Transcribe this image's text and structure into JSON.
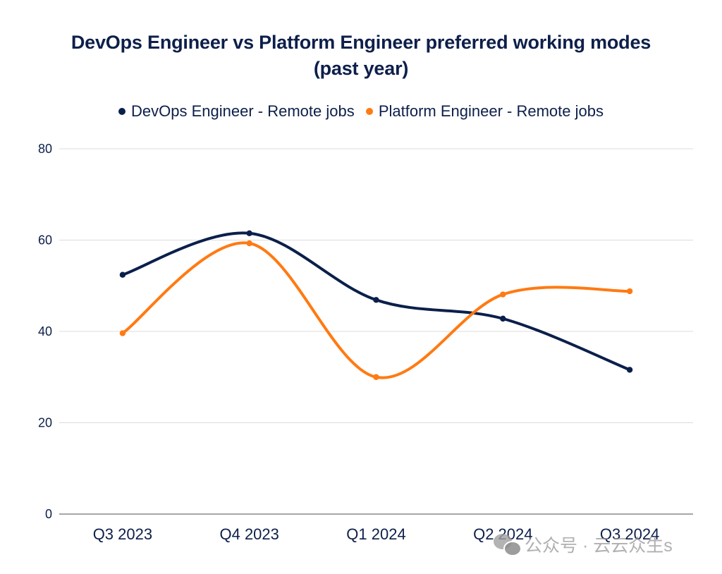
{
  "chart_data": {
    "type": "line",
    "title": "DevOps Engineer vs Platform Engineer preferred working modes (past year)",
    "title_lines": [
      "DevOps Engineer vs Platform Engineer preferred working modes",
      "(past year)"
    ],
    "categories": [
      "Q3 2023",
      "Q4 2023",
      "Q1 2024",
      "Q2 2024",
      "Q3 2024"
    ],
    "series": [
      {
        "name": "DevOps Engineer - Remote jobs",
        "color": "#0b1f4b",
        "values": [
          52.4,
          61.5,
          46.9,
          42.8,
          31.6
        ]
      },
      {
        "name": "Platform Engineer - Remote jobs",
        "color": "#ff7a12",
        "values": [
          39.6,
          59.3,
          30.0,
          48.1,
          48.8
        ]
      }
    ],
    "xlabel": "",
    "ylabel": "",
    "ylim": [
      0,
      80
    ],
    "yticks": [
      0,
      20,
      40,
      60,
      80
    ],
    "grid": true,
    "legend_position": "top-center",
    "smooth": true
  },
  "watermark": {
    "icon": "wechat-icon",
    "text": "公众号 · 云云众生s"
  }
}
